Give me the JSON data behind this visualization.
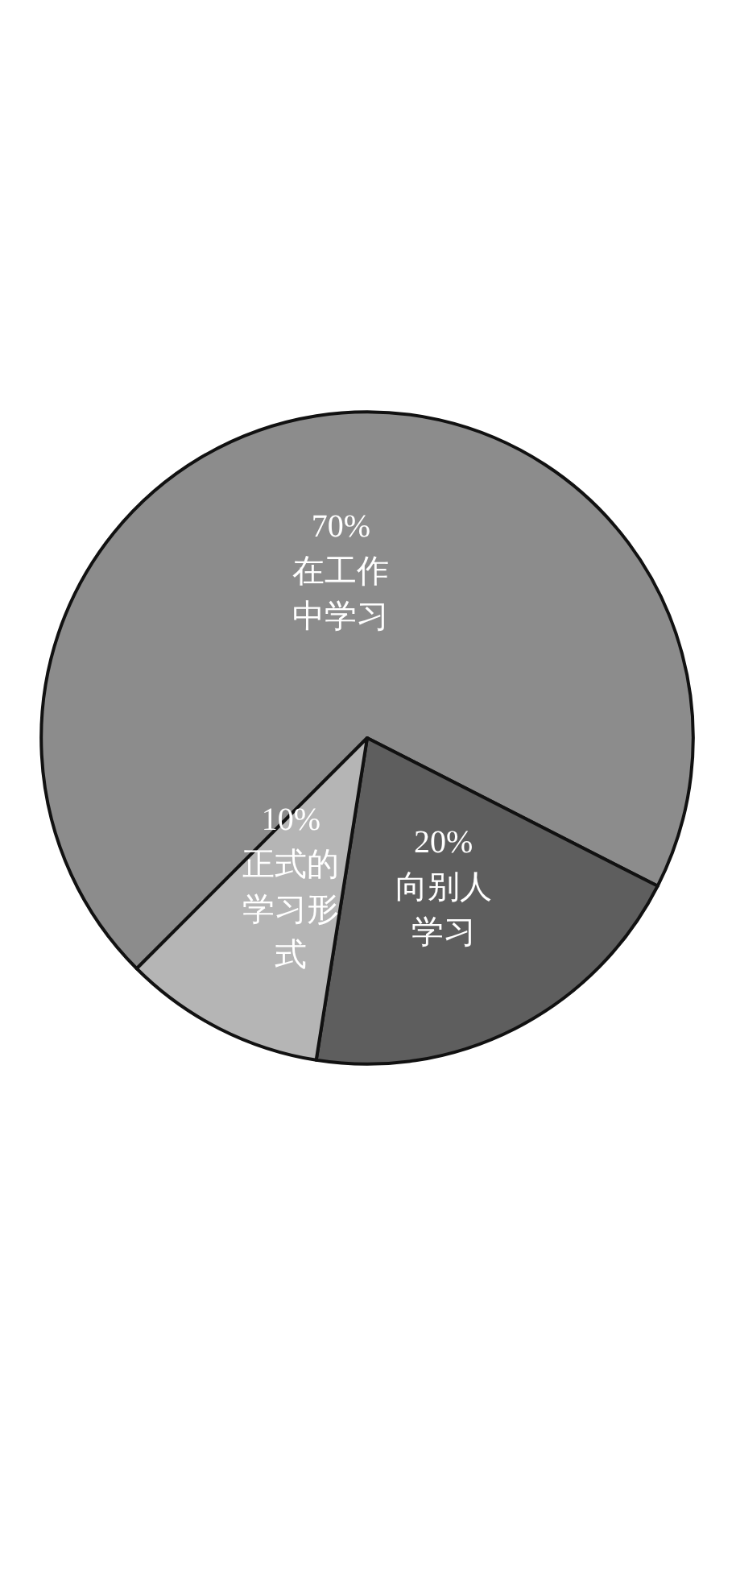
{
  "chart_data": {
    "type": "pie",
    "categories": [
      "在工作中学习",
      "向别人学习",
      "正式的学习形式"
    ],
    "values": [
      70,
      20,
      10
    ],
    "value_labels": [
      "70%",
      "20%",
      "10%"
    ],
    "colors": [
      "#8c8c8c",
      "#5e5e5e",
      "#b5b5b5"
    ]
  }
}
